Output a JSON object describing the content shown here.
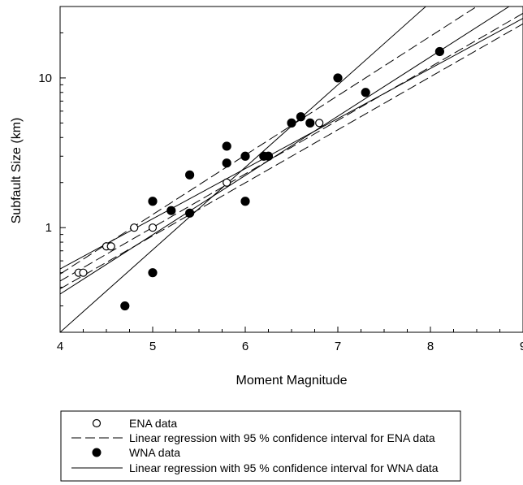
{
  "chart_data": {
    "type": "scatter",
    "title": "",
    "xlabel": "Moment Magnitude",
    "ylabel": "Subfault Size (km)",
    "x_range": [
      4,
      9
    ],
    "y_range": [
      0.2,
      30
    ],
    "y_scale": "log",
    "x_ticks": [
      "4",
      "5",
      "6",
      "7",
      "8",
      "9"
    ],
    "y_ticks": [
      {
        "value": 1,
        "label": "1"
      },
      {
        "value": 10,
        "label": "10"
      }
    ],
    "grid": false,
    "legend_position": "bottom",
    "series": [
      {
        "name": "ENA data",
        "marker": "open-circle",
        "points": [
          {
            "x": 4.2,
            "y": 0.5
          },
          {
            "x": 4.25,
            "y": 0.5
          },
          {
            "x": 4.5,
            "y": 0.75
          },
          {
            "x": 4.55,
            "y": 0.75
          },
          {
            "x": 4.8,
            "y": 1.0
          },
          {
            "x": 5.0,
            "y": 1.0
          },
          {
            "x": 5.8,
            "y": 2.0
          },
          {
            "x": 6.8,
            "y": 5.0
          }
        ]
      },
      {
        "name": "WNA data",
        "marker": "filled-circle",
        "points": [
          {
            "x": 4.7,
            "y": 0.3
          },
          {
            "x": 5.0,
            "y": 0.5
          },
          {
            "x": 5.0,
            "y": 1.5
          },
          {
            "x": 5.2,
            "y": 1.3
          },
          {
            "x": 5.4,
            "y": 1.25
          },
          {
            "x": 5.4,
            "y": 2.25
          },
          {
            "x": 5.8,
            "y": 2.7
          },
          {
            "x": 5.8,
            "y": 3.5
          },
          {
            "x": 6.0,
            "y": 1.5
          },
          {
            "x": 6.0,
            "y": 3.0
          },
          {
            "x": 6.2,
            "y": 3.0
          },
          {
            "x": 6.25,
            "y": 3.0
          },
          {
            "x": 6.5,
            "y": 5.0
          },
          {
            "x": 6.6,
            "y": 5.5
          },
          {
            "x": 6.7,
            "y": 5.0
          },
          {
            "x": 7.0,
            "y": 10.0
          },
          {
            "x": 7.3,
            "y": 8.0
          },
          {
            "x": 8.1,
            "y": 15.0
          }
        ]
      }
    ],
    "regression_lines": [
      {
        "group": "ENA",
        "role": "fit",
        "style": "dashed",
        "from": {
          "x": 4,
          "y": 0.44
        },
        "to": {
          "x": 9,
          "y": 27
        }
      },
      {
        "group": "ENA",
        "role": "upper-95",
        "style": "dashed",
        "from": {
          "x": 4,
          "y": 0.49
        },
        "to": {
          "x": 8.5,
          "y": 30
        }
      },
      {
        "group": "ENA",
        "role": "lower-95",
        "style": "dashed",
        "from": {
          "x": 4,
          "y": 0.39
        },
        "to": {
          "x": 9,
          "y": 23
        }
      },
      {
        "group": "WNA",
        "role": "fit",
        "style": "solid",
        "from": {
          "x": 4,
          "y": 0.36
        },
        "to": {
          "x": 8.85,
          "y": 30
        }
      },
      {
        "group": "WNA",
        "role": "upper-95",
        "style": "solid",
        "from": {
          "x": 4,
          "y": 0.53
        },
        "to": {
          "x": 9,
          "y": 25
        }
      },
      {
        "group": "WNA",
        "role": "lower-95",
        "style": "solid",
        "from": {
          "x": 4,
          "y": 0.2
        },
        "to": {
          "x": 7.95,
          "y": 30
        }
      }
    ],
    "legend": [
      {
        "marker": "open-circle",
        "label": "ENA data"
      },
      {
        "marker": "dashed-line",
        "label": "Linear regression with 95 % confidence interval for ENA data"
      },
      {
        "marker": "filled-circle",
        "label": "WNA data"
      },
      {
        "marker": "solid-line",
        "label": "Linear regression with 95 % confidence interval for WNA data"
      }
    ]
  }
}
